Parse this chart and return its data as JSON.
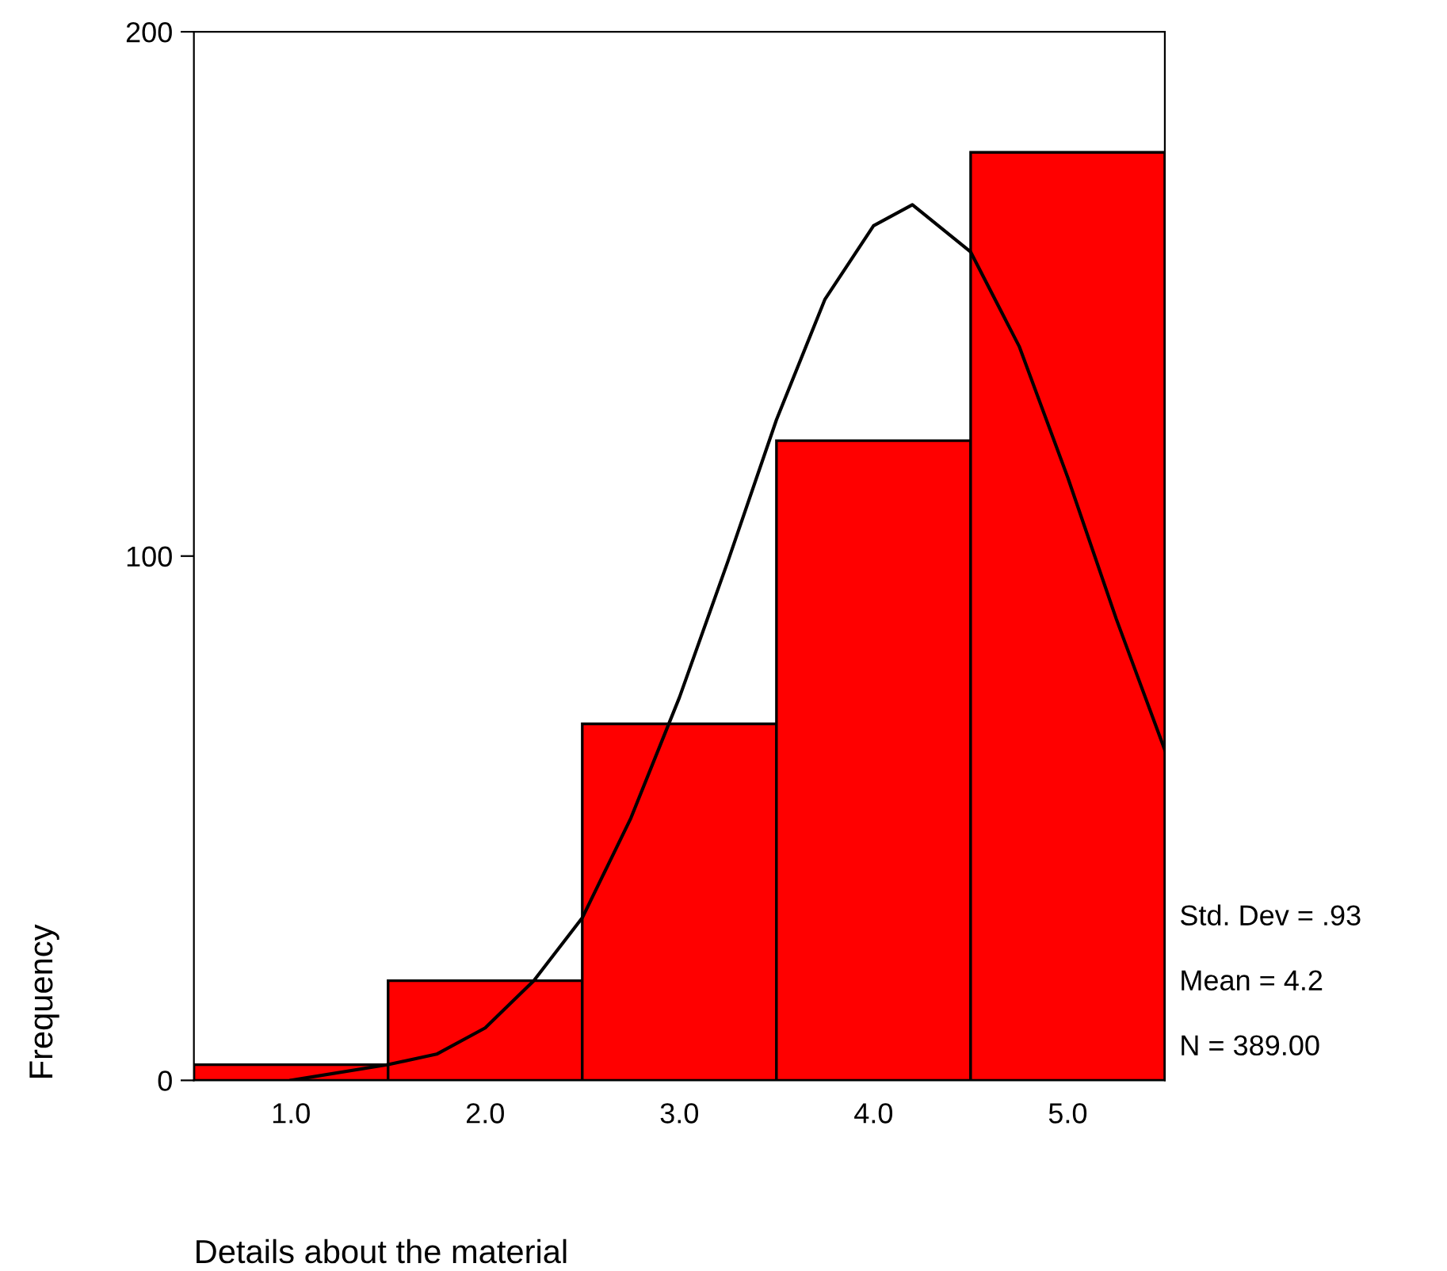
{
  "chart_data": {
    "type": "histogram",
    "xlabel": "Details about the material",
    "ylabel": "Frequency",
    "series": [
      {
        "type": "histogram",
        "bins": [
          0.5,
          1.5,
          2.5,
          3.5,
          4.5,
          5.5
        ],
        "values": [
          3,
          19,
          68,
          122,
          177
        ],
        "color": "#ff0000"
      },
      {
        "type": "line",
        "x": [
          1.0,
          1.5,
          1.75,
          2.0,
          2.25,
          2.5,
          2.75,
          3.0,
          3.25,
          3.5,
          3.75,
          4.0,
          4.2,
          4.5,
          4.75,
          5.0,
          5.25,
          5.5
        ],
        "values": [
          0,
          3,
          5,
          10,
          19,
          31,
          50,
          73,
          99,
          126,
          149,
          163,
          167,
          158,
          140,
          115,
          88,
          63
        ],
        "color": "#000000"
      }
    ],
    "xlim": [
      0.5,
      5.5
    ],
    "xticks": [
      {
        "value": 1,
        "label": "1.0"
      },
      {
        "value": 2,
        "label": "2.0"
      },
      {
        "value": 3,
        "label": "3.0"
      },
      {
        "value": 4,
        "label": "4.0"
      },
      {
        "value": 5,
        "label": "5.0"
      }
    ],
    "ylim": [
      0,
      200
    ],
    "yticks": [
      0,
      100,
      200
    ],
    "annotations": [
      "Std. Dev = .93",
      "Mean = 4.2",
      "N = 389.00"
    ],
    "grid": false,
    "legend": false
  }
}
